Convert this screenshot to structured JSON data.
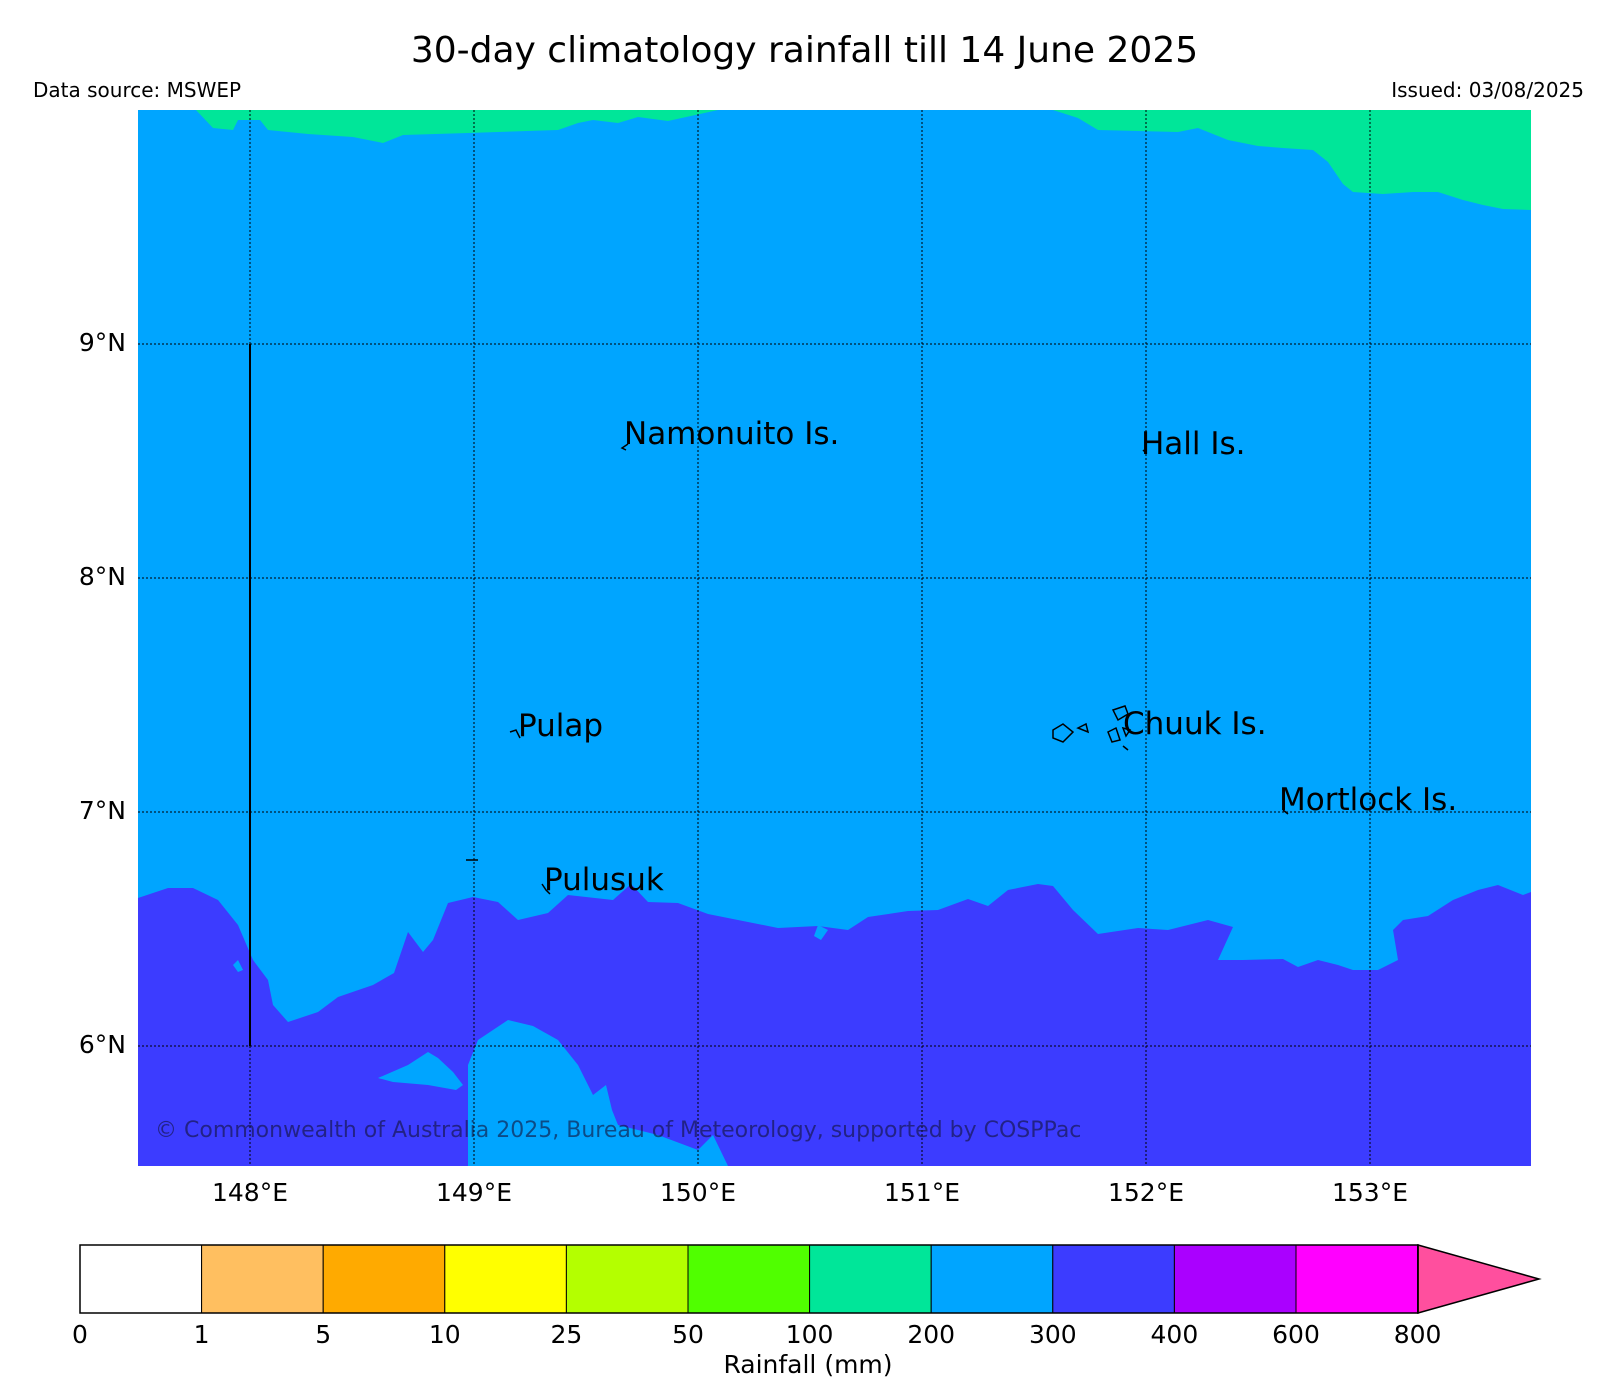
{
  "header": {
    "title": "30-day climatology rainfall till 14 June 2025",
    "source": "Data source: MSWEP",
    "issued": "Issued: 03/08/2025"
  },
  "axes": {
    "lat_labels": [
      "9°N",
      "8°N",
      "7°N",
      "6°N"
    ],
    "lon_labels": [
      "148°E",
      "149°E",
      "150°E",
      "151°E",
      "152°E",
      "153°E"
    ]
  },
  "places": {
    "namonuito": "Namonuito Is.",
    "hall": "Hall Is.",
    "pulap": "Pulap",
    "chuuk": "Chuuk Is.",
    "mortlock": "Mortlock Is.",
    "pulusuk": "Pulusuk"
  },
  "copyright": "© Commonwealth of Australia 2025, Bureau of Meteorology, supported by COSPPac",
  "colorbar": {
    "label": "Rainfall (mm)",
    "ticks": [
      "0",
      "1",
      "5",
      "10",
      "25",
      "50",
      "100",
      "200",
      "300",
      "400",
      "600",
      "800"
    ],
    "colors": [
      "#ffffff",
      "#ffbf60",
      "#ffaa00",
      "#ffff00",
      "#b4ff00",
      "#50ff00",
      "#00e699",
      "#00a5ff",
      "#3c3cff",
      "#aa00ff",
      "#ff00ff",
      "#ff4f9e"
    ]
  },
  "map_colors": {
    "band_100_200": "#00e699",
    "band_200_300": "#00a5ff",
    "band_300_400": "#3c3cff"
  }
}
